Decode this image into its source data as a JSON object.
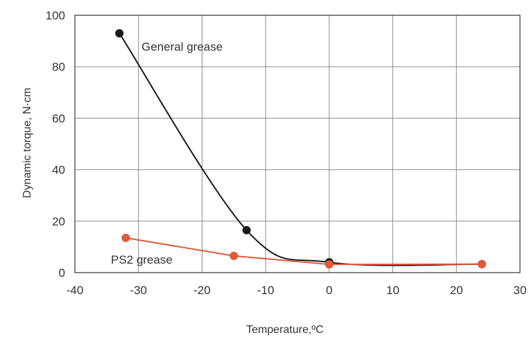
{
  "chart_data": {
    "type": "line",
    "xlabel": "Temperature,ºC",
    "ylabel": "Dynamic torque, N·cm",
    "xlim": [
      -40,
      30
    ],
    "ylim": [
      0,
      100
    ],
    "xticks": [
      -40,
      -30,
      -20,
      -10,
      0,
      10,
      20,
      30
    ],
    "yticks": [
      0,
      20,
      40,
      60,
      80,
      100
    ],
    "xtick_labels": [
      "-40",
      "-30",
      "-20",
      "-10",
      "0",
      "10",
      "20",
      "30"
    ],
    "ytick_labels": [
      "0",
      "20",
      "40",
      "60",
      "80",
      "100"
    ],
    "grid": true,
    "legend": "none",
    "series": [
      {
        "name": "General grease",
        "color": "#1a1a1a",
        "smooth": true,
        "x": [
          -33,
          -13,
          0,
          24
        ],
        "y": [
          93,
          16.5,
          4,
          3.3
        ]
      },
      {
        "name": "PS2 grease",
        "color": "#e05a3a",
        "smooth": false,
        "x": [
          -32,
          -15,
          0,
          24
        ],
        "y": [
          13.5,
          6.5,
          3.2,
          3.3
        ]
      }
    ]
  }
}
